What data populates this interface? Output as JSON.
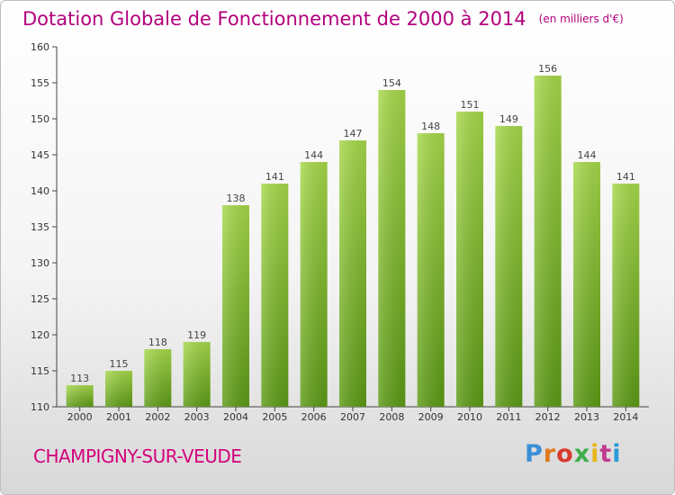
{
  "header": {
    "title": "Dotation Globale de Fonctionnement de 2000 à 2014",
    "unit": "(en milliers d'€)"
  },
  "footer": {
    "commune": "CHAMPIGNY-SUR-VEUDE",
    "logo_text": "Proxiti",
    "logo_colors": [
      "#3a8fd6",
      "#e07a1f",
      "#d83a2e",
      "#3fae49",
      "#e8b51c",
      "#c23b8f",
      "#2a9bd8"
    ]
  },
  "colors": {
    "bar_top": "#a6d84a",
    "bar_bottom": "#5c9a16",
    "title": "#b2007d",
    "commune": "#d4007c"
  },
  "chart_data": {
    "type": "bar",
    "title": "Dotation Globale de Fonctionnement de 2000 à 2014",
    "subtitle": "(en milliers d'€)",
    "categories": [
      "2000",
      "2001",
      "2002",
      "2003",
      "2004",
      "2005",
      "2006",
      "2007",
      "2008",
      "2009",
      "2010",
      "2011",
      "2012",
      "2013",
      "2014"
    ],
    "values": [
      113,
      115,
      118,
      119,
      138,
      141,
      144,
      147,
      154,
      148,
      151,
      149,
      156,
      144,
      141
    ],
    "ylim": [
      110,
      160
    ],
    "yticks": [
      110,
      115,
      120,
      125,
      130,
      135,
      140,
      145,
      150,
      155,
      160
    ],
    "grid": false
  }
}
